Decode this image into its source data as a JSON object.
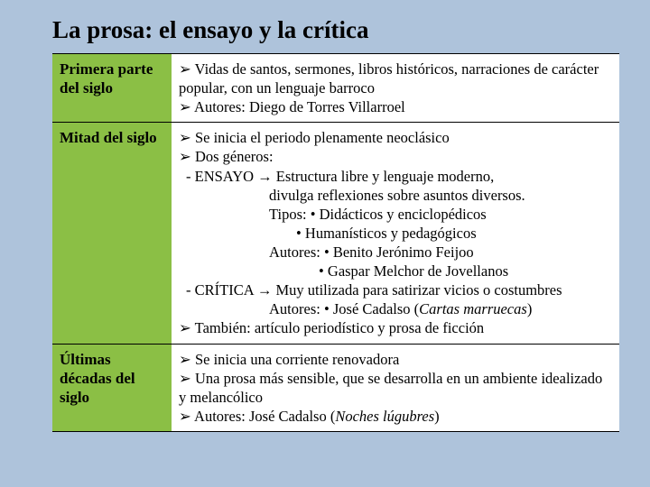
{
  "title": "La prosa: el ensayo y la crítica",
  "colors": {
    "slide_bg": "#aec3db",
    "left_col_bg": "#8bbf45",
    "right_col_bg": "#ffffff",
    "border": "#000000",
    "text": "#000000"
  },
  "rows": [
    {
      "label": "Primera parte del siglo",
      "lines": [
        {
          "cls": "bullet",
          "text": "Vidas de santos, sermones, libros históricos, narraciones de carácter popular, con un lenguaje barroco"
        },
        {
          "cls": "bullet",
          "text": "Autores: Diego de Torres Villarroel"
        }
      ]
    },
    {
      "label": "Mitad del siglo",
      "lines": [
        {
          "cls": "bullet",
          "text": "Se inicia el periodo plenamente neoclásico"
        },
        {
          "cls": "bullet",
          "text": "Dos géneros:"
        },
        {
          "cls": "indent1",
          "text": "- ENSAYO → Estructura libre y lenguaje moderno,"
        },
        {
          "cls": "indent2",
          "text": "divulga reflexiones sobre asuntos diversos."
        },
        {
          "cls": "indent2",
          "text": "Tipos:  • Didácticos y enciclopédicos"
        },
        {
          "cls": "indent3",
          "text": "• Humanísticos y pedagógicos"
        },
        {
          "cls": "indent2",
          "text": "Autores:  • Benito Jerónimo Feijoo"
        },
        {
          "cls": "indent4",
          "text": "• Gaspar Melchor de Jovellanos"
        },
        {
          "cls": "indent1",
          "text": "- CRÍTICA → Muy utilizada para satirizar vicios o costumbres"
        },
        {
          "cls": "indent2",
          "html": "Autores:  • José Cadalso (<span class=\"italic\">Cartas marruecas</span>)"
        },
        {
          "cls": "bullet",
          "text": "También: artículo periodístico y prosa de ficción"
        }
      ]
    },
    {
      "label": "Últimas décadas del siglo",
      "lines": [
        {
          "cls": "bullet",
          "text": "Se inicia una corriente renovadora"
        },
        {
          "cls": "bullet",
          "text": "Una prosa más sensible, que se desarrolla en un ambiente idealizado y melancólico"
        },
        {
          "cls": "bullet",
          "html": "Autores: José Cadalso (<span class=\"italic\">Noches lúgubres</span>)"
        }
      ]
    }
  ]
}
